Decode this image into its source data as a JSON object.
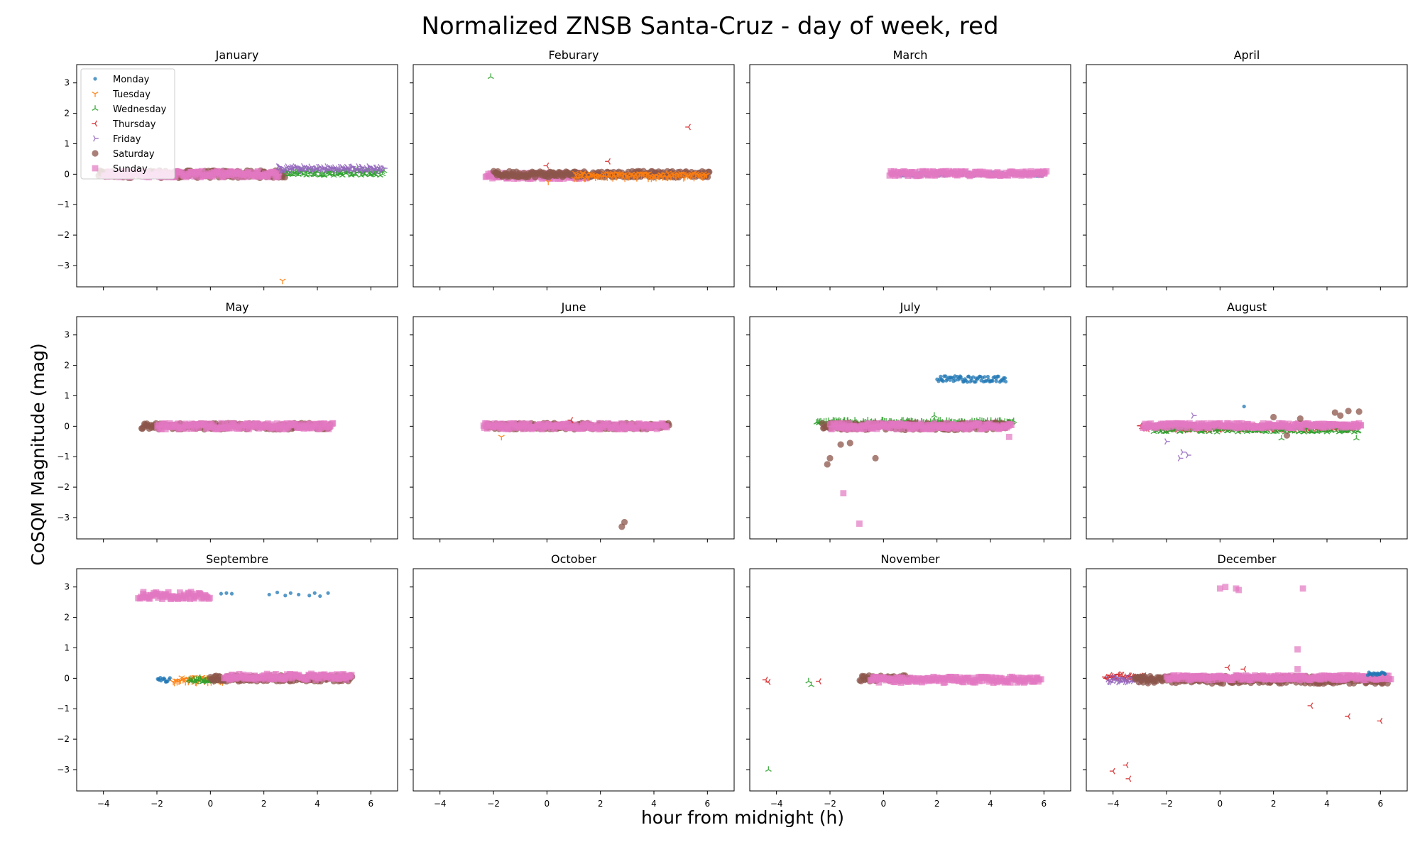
{
  "figure": {
    "title": "Normalized ZNSB Santa-Cruz - day of week, red",
    "xlabel": "hour from midnight (h)",
    "ylabel": "CoSQM Magnitude (mag)"
  },
  "legend": {
    "placement": "top-left of January panel",
    "entries": [
      {
        "name": "Monday",
        "color": "#1f77b4",
        "marker": "point"
      },
      {
        "name": "Tuesday",
        "color": "#ff7f0e",
        "marker": "tri-down"
      },
      {
        "name": "Wednesday",
        "color": "#2ca02c",
        "marker": "tri-up"
      },
      {
        "name": "Thursday",
        "color": "#d62728",
        "marker": "tri-left"
      },
      {
        "name": "Friday",
        "color": "#9467bd",
        "marker": "tri-right"
      },
      {
        "name": "Saturday",
        "color": "#8c564b",
        "marker": "circle"
      },
      {
        "name": "Sunday",
        "color": "#e377c2",
        "marker": "square"
      }
    ]
  },
  "chart_data": {
    "type": "scatter",
    "layout": "3x4 small multiples",
    "shared_x": true,
    "shared_y": true,
    "xlim": [
      -5,
      7
    ],
    "ylim": [
      -3.7,
      3.6
    ],
    "xticks": [
      -4,
      -2,
      0,
      2,
      4,
      6
    ],
    "yticks": [
      -3,
      -2,
      -1,
      0,
      1,
      2,
      3
    ],
    "grid": false,
    "panels": [
      {
        "title": "January",
        "bands": [
          {
            "series": "Saturday",
            "x0": -4.2,
            "x1": 2.8,
            "y": 0.0,
            "spread": 0.12
          },
          {
            "series": "Sunday",
            "x0": -4.0,
            "x1": 2.6,
            "y": 0.0,
            "spread": 0.1
          },
          {
            "series": "Wednesday",
            "x0": 2.8,
            "x1": 6.5,
            "y": 0.05,
            "spread": 0.1
          },
          {
            "series": "Friday",
            "x0": 2.5,
            "x1": 6.5,
            "y": 0.18,
            "spread": 0.08
          }
        ],
        "points": [
          {
            "series": "Tuesday",
            "x": 2.7,
            "y": -3.5
          }
        ]
      },
      {
        "title": "Feburary",
        "bands": [
          {
            "series": "Sunday",
            "x0": -2.3,
            "x1": 1.5,
            "y": -0.05,
            "spread": 0.1
          },
          {
            "series": "Saturday",
            "x0": -2.0,
            "x1": 6.1,
            "y": 0.0,
            "spread": 0.1
          },
          {
            "series": "Tuesday",
            "x0": 1.0,
            "x1": 6.0,
            "y": -0.05,
            "spread": 0.1
          }
        ],
        "points": [
          {
            "series": "Wednesday",
            "x": -2.1,
            "y": 3.2
          },
          {
            "series": "Thursday",
            "x": 5.3,
            "y": 1.55
          },
          {
            "series": "Thursday",
            "x": 0.0,
            "y": 0.28
          },
          {
            "series": "Thursday",
            "x": 2.3,
            "y": 0.42
          },
          {
            "series": "Tuesday",
            "x": 0.05,
            "y": -0.25
          }
        ]
      },
      {
        "title": "March",
        "bands": [
          {
            "series": "Monday",
            "x0": 0.5,
            "x1": 6.0,
            "y": 0.0,
            "spread": 0.06
          },
          {
            "series": "Sunday",
            "x0": 0.2,
            "x1": 6.1,
            "y": 0.02,
            "spread": 0.08
          }
        ],
        "points": []
      },
      {
        "title": "April",
        "bands": [],
        "points": []
      },
      {
        "title": "May",
        "bands": [
          {
            "series": "Saturday",
            "x0": -2.6,
            "x1": 4.5,
            "y": 0.0,
            "spread": 0.1
          },
          {
            "series": "Sunday",
            "x0": -2.0,
            "x1": 4.6,
            "y": 0.0,
            "spread": 0.1
          }
        ],
        "points": []
      },
      {
        "title": "June",
        "bands": [
          {
            "series": "Saturday",
            "x0": -2.3,
            "x1": 4.6,
            "y": 0.0,
            "spread": 0.1
          },
          {
            "series": "Sunday",
            "x0": -2.4,
            "x1": 4.5,
            "y": 0.0,
            "spread": 0.1
          }
        ],
        "points": [
          {
            "series": "Tuesday",
            "x": -1.7,
            "y": -0.35
          },
          {
            "series": "Thursday",
            "x": 0.9,
            "y": 0.2
          },
          {
            "series": "Saturday",
            "x": 2.9,
            "y": -3.15
          },
          {
            "series": "Saturday",
            "x": 2.8,
            "y": -3.3
          }
        ]
      },
      {
        "title": "July",
        "bands": [
          {
            "series": "Wednesday",
            "x0": -2.5,
            "x1": 4.9,
            "y": 0.12,
            "spread": 0.08
          },
          {
            "series": "Saturday",
            "x0": -2.3,
            "x1": 4.7,
            "y": 0.0,
            "spread": 0.12
          },
          {
            "series": "Sunday",
            "x0": -2.0,
            "x1": 4.8,
            "y": 0.0,
            "spread": 0.1
          },
          {
            "series": "Monday",
            "x0": 2.0,
            "x1": 4.6,
            "y": 1.55,
            "spread": 0.1
          }
        ],
        "points": [
          {
            "series": "Saturday",
            "x": -2.1,
            "y": -1.25
          },
          {
            "series": "Saturday",
            "x": -2.0,
            "y": -1.05
          },
          {
            "series": "Saturday",
            "x": -1.6,
            "y": -0.6
          },
          {
            "series": "Saturday",
            "x": -1.25,
            "y": -0.55
          },
          {
            "series": "Saturday",
            "x": -0.3,
            "y": -1.05
          },
          {
            "series": "Sunday",
            "x": -1.5,
            "y": -2.2
          },
          {
            "series": "Sunday",
            "x": -0.9,
            "y": -3.2
          },
          {
            "series": "Sunday",
            "x": 4.7,
            "y": -0.35
          },
          {
            "series": "Wednesday",
            "x": 1.9,
            "y": 0.35
          }
        ]
      },
      {
        "title": "August",
        "bands": [
          {
            "series": "Thursday",
            "x0": -3.0,
            "x1": 5.0,
            "y": -0.05,
            "spread": 0.08
          },
          {
            "series": "Wednesday",
            "x0": -2.5,
            "x1": 5.2,
            "y": -0.1,
            "spread": 0.1
          },
          {
            "series": "Sunday",
            "x0": -2.9,
            "x1": 5.3,
            "y": 0.02,
            "spread": 0.08
          }
        ],
        "points": [
          {
            "series": "Monday",
            "x": 0.9,
            "y": 0.65
          },
          {
            "series": "Friday",
            "x": -1.0,
            "y": 0.35
          },
          {
            "series": "Friday",
            "x": -2.0,
            "y": -0.5
          },
          {
            "series": "Friday",
            "x": -1.4,
            "y": -0.85
          },
          {
            "series": "Friday",
            "x": -1.2,
            "y": -0.95
          },
          {
            "series": "Friday",
            "x": -1.5,
            "y": -1.05
          },
          {
            "series": "Saturday",
            "x": 4.3,
            "y": 0.45
          },
          {
            "series": "Saturday",
            "x": 4.8,
            "y": 0.5
          },
          {
            "series": "Saturday",
            "x": 5.2,
            "y": 0.48
          },
          {
            "series": "Saturday",
            "x": 4.5,
            "y": 0.35
          },
          {
            "series": "Saturday",
            "x": 2.0,
            "y": 0.3
          },
          {
            "series": "Saturday",
            "x": 3.0,
            "y": 0.25
          },
          {
            "series": "Saturday",
            "x": 2.5,
            "y": -0.3
          },
          {
            "series": "Wednesday",
            "x": 5.1,
            "y": -0.4
          },
          {
            "series": "Wednesday",
            "x": 2.3,
            "y": -0.4
          }
        ]
      },
      {
        "title": "Septembre",
        "bands": [
          {
            "series": "Sunday",
            "x0": -2.7,
            "x1": 0.0,
            "y": 2.72,
            "spread": 0.12
          },
          {
            "series": "Monday",
            "x0": -2.0,
            "x1": -1.5,
            "y": -0.05,
            "spread": 0.1
          },
          {
            "series": "Tuesday",
            "x0": -1.4,
            "x1": 0.5,
            "y": -0.05,
            "spread": 0.1
          },
          {
            "series": "Wednesday",
            "x0": -0.8,
            "x1": 0.2,
            "y": -0.05,
            "spread": 0.08
          },
          {
            "series": "Saturday",
            "x0": 0.0,
            "x1": 5.3,
            "y": 0.0,
            "spread": 0.1
          },
          {
            "series": "Sunday",
            "x0": 0.5,
            "x1": 5.3,
            "y": 0.05,
            "spread": 0.1
          }
        ],
        "points": [
          {
            "series": "Monday",
            "x": 0.4,
            "y": 2.78
          },
          {
            "series": "Monday",
            "x": 0.6,
            "y": 2.8
          },
          {
            "series": "Monday",
            "x": 0.8,
            "y": 2.78
          },
          {
            "series": "Monday",
            "x": 2.2,
            "y": 2.75
          },
          {
            "series": "Monday",
            "x": 2.5,
            "y": 2.82
          },
          {
            "series": "Monday",
            "x": 2.8,
            "y": 2.72
          },
          {
            "series": "Monday",
            "x": 3.0,
            "y": 2.8
          },
          {
            "series": "Monday",
            "x": 3.3,
            "y": 2.75
          },
          {
            "series": "Monday",
            "x": 3.7,
            "y": 2.72
          },
          {
            "series": "Monday",
            "x": 3.9,
            "y": 2.8
          },
          {
            "series": "Monday",
            "x": 4.1,
            "y": 2.7
          },
          {
            "series": "Monday",
            "x": 4.4,
            "y": 2.8
          }
        ]
      },
      {
        "title": "October",
        "bands": [],
        "points": []
      },
      {
        "title": "November",
        "bands": [
          {
            "series": "Saturday",
            "x0": -0.9,
            "x1": 1.0,
            "y": 0.0,
            "spread": 0.1
          },
          {
            "series": "Sunday",
            "x0": -0.5,
            "x1": 5.9,
            "y": -0.05,
            "spread": 0.1
          }
        ],
        "points": [
          {
            "series": "Thursday",
            "x": -4.4,
            "y": -0.05
          },
          {
            "series": "Thursday",
            "x": -4.3,
            "y": -0.12
          },
          {
            "series": "Wednesday",
            "x": -4.3,
            "y": -3.0
          },
          {
            "series": "Wednesday",
            "x": -2.8,
            "y": -0.1
          },
          {
            "series": "Wednesday",
            "x": -2.7,
            "y": -0.22
          },
          {
            "series": "Thursday",
            "x": -2.4,
            "y": -0.1
          }
        ]
      },
      {
        "title": "December",
        "bands": [
          {
            "series": "Thursday",
            "x0": -4.3,
            "x1": -2.8,
            "y": 0.05,
            "spread": 0.08
          },
          {
            "series": "Friday",
            "x0": -4.2,
            "x1": -2.5,
            "y": -0.05,
            "spread": 0.08
          },
          {
            "series": "Saturday",
            "x0": -3.2,
            "x1": 6.3,
            "y": -0.05,
            "spread": 0.12
          },
          {
            "series": "Sunday",
            "x0": -2.0,
            "x1": 6.4,
            "y": 0.02,
            "spread": 0.08
          },
          {
            "series": "Monday",
            "x0": 5.5,
            "x1": 6.2,
            "y": 0.15,
            "spread": 0.05
          }
        ],
        "points": [
          {
            "series": "Sunday",
            "x": 0.0,
            "y": 2.95
          },
          {
            "series": "Sunday",
            "x": 0.2,
            "y": 3.0
          },
          {
            "series": "Sunday",
            "x": 0.6,
            "y": 2.95
          },
          {
            "series": "Sunday",
            "x": 0.7,
            "y": 2.9
          },
          {
            "series": "Sunday",
            "x": 3.1,
            "y": 2.95
          },
          {
            "series": "Sunday",
            "x": 2.9,
            "y": 0.95
          },
          {
            "series": "Sunday",
            "x": 2.9,
            "y": 0.3
          },
          {
            "series": "Thursday",
            "x": -4.0,
            "y": -3.05
          },
          {
            "series": "Thursday",
            "x": -3.5,
            "y": -2.85
          },
          {
            "series": "Thursday",
            "x": -3.4,
            "y": -3.3
          },
          {
            "series": "Thursday",
            "x": 3.4,
            "y": -0.9
          },
          {
            "series": "Thursday",
            "x": 4.8,
            "y": -1.25
          },
          {
            "series": "Thursday",
            "x": 6.0,
            "y": -1.4
          },
          {
            "series": "Thursday",
            "x": 0.3,
            "y": 0.35
          },
          {
            "series": "Thursday",
            "x": 0.9,
            "y": 0.3
          }
        ]
      }
    ]
  }
}
